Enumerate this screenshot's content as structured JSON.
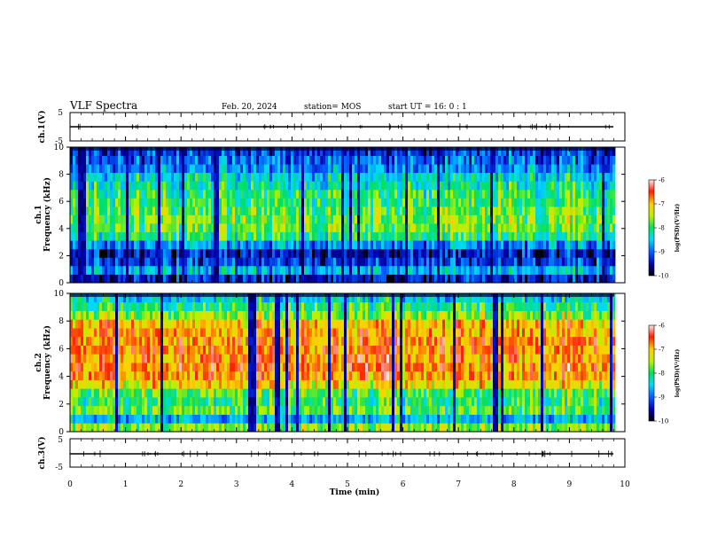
{
  "header": {
    "title": "VLF Spectra",
    "date": "Feb. 20, 2024",
    "station": "station= MOS",
    "start": "start  UT =   16: 0  : 1"
  },
  "chart_data": [
    {
      "type": "line",
      "name": "ch1-voltage",
      "ylabel": "ch.1(V)",
      "ylim": [
        -5,
        5
      ],
      "yticks": [
        "5",
        "-5"
      ],
      "x": [
        0,
        9.8
      ],
      "y": [
        0,
        0
      ]
    },
    {
      "type": "heatmap",
      "name": "ch1-spectrogram",
      "ylabel": "ch.1\nFrequency (kHz)",
      "ylabel_line1": "ch.1",
      "ylabel_line2": "Frequency (kHz)",
      "ylim": [
        0,
        10
      ],
      "yticks": [
        "0",
        "2",
        "4",
        "6",
        "8",
        "10"
      ],
      "xlim": [
        0,
        9.8
      ],
      "intensity_profile": [
        0.15,
        0.35,
        0.2,
        0.15,
        0.3,
        0.5,
        0.55,
        0.58,
        0.55,
        0.52,
        0.5,
        0.45,
        0.4,
        0.3,
        0.25,
        0.2
      ],
      "colorbar": {
        "label": "log(PSD)(V²/Hz)",
        "range": [
          -10,
          -6
        ],
        "ticks": [
          "-6",
          "-7",
          "-8",
          "-9",
          "-10"
        ]
      }
    },
    {
      "type": "heatmap",
      "name": "ch2-spectrogram",
      "ylabel": "ch.2\nFrequency (kHz)",
      "ylabel_line1": "ch.2",
      "ylabel_line2": "Frequency (kHz)",
      "ylim": [
        0,
        10
      ],
      "yticks": [
        "0",
        "2",
        "4",
        "6",
        "8",
        "10"
      ],
      "xlim": [
        0,
        9.8
      ],
      "intensity_profile": [
        0.6,
        0.35,
        0.55,
        0.5,
        0.55,
        0.7,
        0.8,
        0.82,
        0.8,
        0.82,
        0.8,
        0.78,
        0.75,
        0.6,
        0.5,
        0.4
      ],
      "colorbar": {
        "label": "log(PSD)(V²/Hz)",
        "range": [
          -10,
          -6
        ],
        "ticks": [
          "-6",
          "-7",
          "-8",
          "-9",
          "-10"
        ]
      }
    },
    {
      "type": "line",
      "name": "ch3-voltage",
      "ylabel": "ch.3(V)",
      "ylim": [
        -5,
        5
      ],
      "yticks": [
        "5",
        "-5"
      ],
      "x": [
        0,
        9.8
      ],
      "y": [
        0,
        0
      ]
    }
  ],
  "xaxis": {
    "label": "Time  (min)",
    "range": [
      0,
      10
    ],
    "ticks": [
      "0",
      "1",
      "2",
      "3",
      "4",
      "5",
      "6",
      "7",
      "8",
      "9",
      "10"
    ]
  },
  "colors": {
    "background": "#ffffff",
    "axes": "#000000"
  }
}
